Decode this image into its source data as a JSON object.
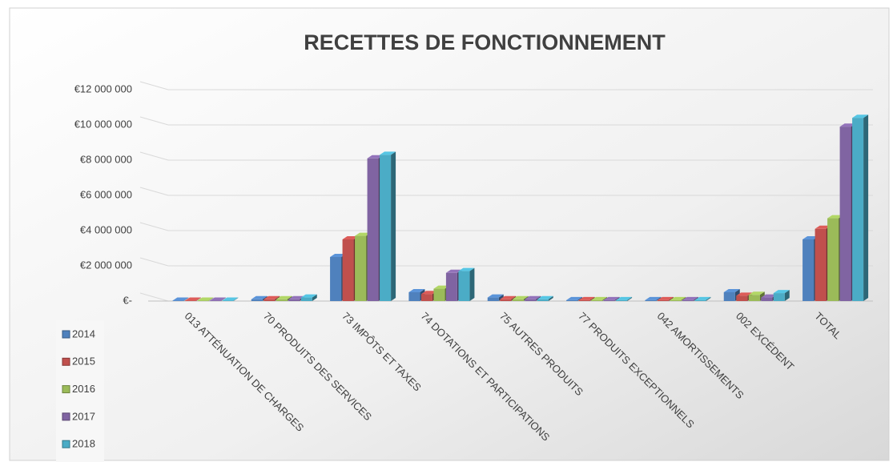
{
  "chart_data": {
    "type": "bar3d",
    "title": "RECETTES DE FONCTIONNEMENT",
    "categories": [
      "013 ATTÉNUATION DE CHARGES",
      "70 PRODUITS DES SERVICES",
      "73 IMPÔTS ET TAXES",
      "74 DOTATIONS ET PARTICIPATIONS",
      "75 AUTRES PRODUITS",
      "77 PRODUITS EXCEPTIONNELS",
      "042 AMORTISSEMENTS",
      "002 EXCÉDENT",
      "TOTAL"
    ],
    "series": [
      {
        "name": "2014",
        "color": "#4f81bd",
        "values": [
          20000,
          100000,
          2500000,
          500000,
          200000,
          50000,
          50000,
          500000,
          3500000
        ]
      },
      {
        "name": "2015",
        "color": "#c0504d",
        "values": [
          20000,
          100000,
          3500000,
          400000,
          100000,
          50000,
          50000,
          300000,
          4100000
        ]
      },
      {
        "name": "2016",
        "color": "#9bbb59",
        "values": [
          20000,
          100000,
          3700000,
          700000,
          100000,
          50000,
          50000,
          350000,
          4700000
        ]
      },
      {
        "name": "2017",
        "color": "#8064a2",
        "values": [
          20000,
          100000,
          8100000,
          1600000,
          100000,
          50000,
          50000,
          200000,
          9900000
        ]
      },
      {
        "name": "2018",
        "color": "#4bacc6",
        "values": [
          20000,
          200000,
          8300000,
          1700000,
          100000,
          50000,
          50000,
          450000,
          10400000
        ]
      }
    ],
    "ylim": [
      0,
      12000000
    ],
    "yticks": [
      {
        "value": 0,
        "label": "€-"
      },
      {
        "value": 2000000,
        "label": "€2 000 000"
      },
      {
        "value": 4000000,
        "label": "€4 000 000"
      },
      {
        "value": 6000000,
        "label": "€6 000 000"
      },
      {
        "value": 8000000,
        "label": "€8 000 000"
      },
      {
        "value": 10000000,
        "label": "€10 000 000"
      },
      {
        "value": 12000000,
        "label": "€12 000 000"
      }
    ],
    "grid": true,
    "legend": "bottom-left"
  }
}
